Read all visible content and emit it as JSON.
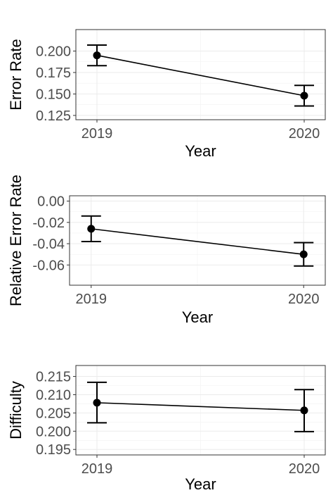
{
  "chart_data": [
    {
      "type": "line",
      "ylabel": "Error Rate",
      "xlabel": "Year",
      "x": [
        "2019",
        "2020"
      ],
      "values": [
        0.195,
        0.148
      ],
      "error_low": [
        0.183,
        0.136
      ],
      "error_high": [
        0.207,
        0.16
      ],
      "ylim": [
        0.12,
        0.225
      ],
      "yticks": [
        0.125,
        0.15,
        0.175,
        0.2
      ],
      "ytick_labels": [
        "0.125",
        "0.150",
        "0.175",
        "0.200"
      ],
      "grid": true
    },
    {
      "type": "line",
      "ylabel": "Relative Error Rate",
      "xlabel": "Year",
      "x": [
        "2019",
        "2020"
      ],
      "values": [
        -0.026,
        -0.05
      ],
      "error_low": [
        -0.038,
        -0.061
      ],
      "error_high": [
        -0.014,
        -0.039
      ],
      "ylim": [
        -0.079,
        0.005
      ],
      "yticks": [
        -0.06,
        -0.04,
        -0.02,
        0.0
      ],
      "ytick_labels": [
        "-0.06",
        "-0.04",
        "-0.02",
        "0.00"
      ],
      "grid": true
    },
    {
      "type": "line",
      "ylabel": "Difficulty",
      "xlabel": "Year",
      "x": [
        "2019",
        "2020"
      ],
      "values": [
        0.2078,
        0.2057
      ],
      "error_low": [
        0.2023,
        0.1999
      ],
      "error_high": [
        0.2134,
        0.2114
      ],
      "ylim": [
        0.1935,
        0.218
      ],
      "yticks": [
        0.195,
        0.2,
        0.205,
        0.21,
        0.215
      ],
      "ytick_labels": [
        "0.195",
        "0.200",
        "0.205",
        "0.210",
        "0.215"
      ],
      "grid": true
    }
  ]
}
